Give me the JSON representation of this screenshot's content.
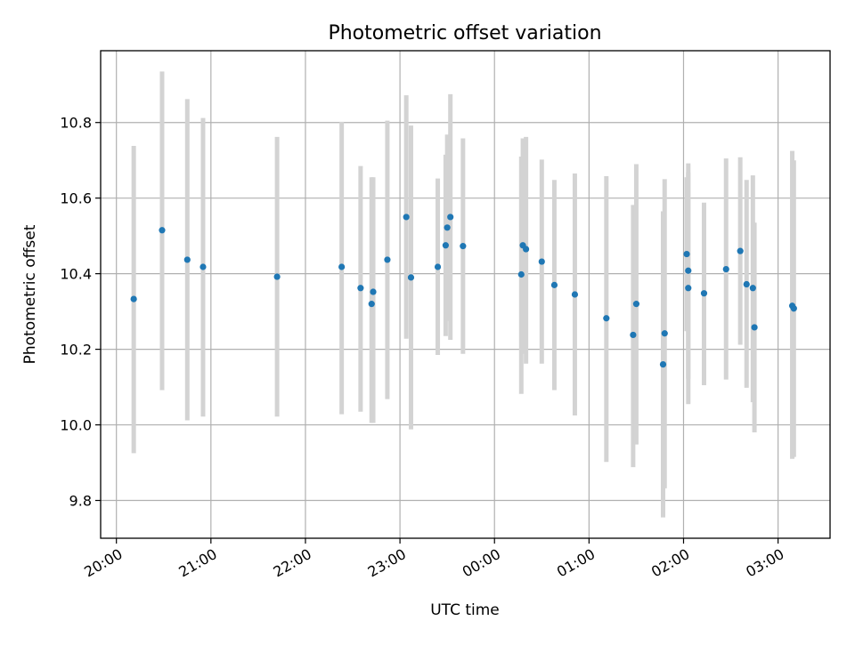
{
  "chart_data": {
    "type": "scatter",
    "title": "Photometric offset variation",
    "xlabel": "UTC time",
    "ylabel": "Photometric offset",
    "x_unit": "UTC hh:mm (times after midnight belong to next day)",
    "xlim": [
      "19:50",
      "03:33"
    ],
    "ylim": [
      9.7,
      10.99
    ],
    "xticks": [
      "20:00",
      "21:00",
      "22:00",
      "23:00",
      "00:00",
      "01:00",
      "02:00",
      "03:00"
    ],
    "yticks": [
      "9.8",
      "10.0",
      "10.2",
      "10.4",
      "10.6",
      "10.8"
    ],
    "grid": true,
    "colors": {
      "points": "#1f77b4",
      "errorbars": "#d3d3d3",
      "grid": "#b0b0b0"
    },
    "series": [
      {
        "points": [
          {
            "x": "20:11",
            "y": 10.333,
            "err_low": 9.925,
            "err_high": 10.738
          },
          {
            "x": "20:29",
            "y": 10.515,
            "err_low": 10.092,
            "err_high": 10.935
          },
          {
            "x": "20:45",
            "y": 10.437,
            "err_low": 10.012,
            "err_high": 10.862
          },
          {
            "x": "20:55",
            "y": 10.418,
            "err_low": 10.022,
            "err_high": 10.812
          },
          {
            "x": "21:42",
            "y": 10.392,
            "err_low": 10.022,
            "err_high": 10.762
          },
          {
            "x": "22:23",
            "y": 10.418,
            "err_low": 10.028,
            "err_high": 10.802
          },
          {
            "x": "22:35",
            "y": 10.362,
            "err_low": 10.035,
            "err_high": 10.685
          },
          {
            "x": "22:42",
            "y": 10.32,
            "err_low": 10.005,
            "err_high": 10.655
          },
          {
            "x": "22:43",
            "y": 10.352,
            "err_low": 10.005,
            "err_high": 10.655
          },
          {
            "x": "22:52",
            "y": 10.437,
            "err_low": 10.068,
            "err_high": 10.805
          },
          {
            "x": "23:04",
            "y": 10.55,
            "err_low": 10.228,
            "err_high": 10.872
          },
          {
            "x": "23:07",
            "y": 10.39,
            "err_low": 9.988,
            "err_high": 10.792
          },
          {
            "x": "23:24",
            "y": 10.418,
            "err_low": 10.185,
            "err_high": 10.652
          },
          {
            "x": "23:29",
            "y": 10.475,
            "err_low": 10.235,
            "err_high": 10.715
          },
          {
            "x": "23:30",
            "y": 10.522,
            "err_low": 10.275,
            "err_high": 10.768
          },
          {
            "x": "23:32",
            "y": 10.55,
            "err_low": 10.225,
            "err_high": 10.875
          },
          {
            "x": "23:40",
            "y": 10.473,
            "err_low": 10.188,
            "err_high": 10.758
          },
          {
            "x": "00:17",
            "y": 10.398,
            "err_low": 10.082,
            "err_high": 10.71
          },
          {
            "x": "00:18",
            "y": 10.475,
            "err_low": 10.188,
            "err_high": 10.758
          },
          {
            "x": "00:20",
            "y": 10.465,
            "err_low": 10.162,
            "err_high": 10.762
          },
          {
            "x": "00:30",
            "y": 10.432,
            "err_low": 10.162,
            "err_high": 10.702
          },
          {
            "x": "00:38",
            "y": 10.37,
            "err_low": 10.092,
            "err_high": 10.648
          },
          {
            "x": "00:51",
            "y": 10.345,
            "err_low": 10.025,
            "err_high": 10.665
          },
          {
            "x": "01:11",
            "y": 10.282,
            "err_low": 9.902,
            "err_high": 10.658
          },
          {
            "x": "01:28",
            "y": 10.238,
            "err_low": 9.888,
            "err_high": 10.582
          },
          {
            "x": "01:30",
            "y": 10.32,
            "err_low": 9.948,
            "err_high": 10.69
          },
          {
            "x": "01:47",
            "y": 10.16,
            "err_low": 9.755,
            "err_high": 10.565
          },
          {
            "x": "01:48",
            "y": 10.242,
            "err_low": 9.832,
            "err_high": 10.65
          },
          {
            "x": "02:02",
            "y": 10.452,
            "err_low": 10.248,
            "err_high": 10.655
          },
          {
            "x": "02:03",
            "y": 10.408,
            "err_low": 10.122,
            "err_high": 10.692
          },
          {
            "x": "02:03",
            "y": 10.362,
            "err_low": 10.055,
            "err_high": 10.668
          },
          {
            "x": "02:13",
            "y": 10.348,
            "err_low": 10.105,
            "err_high": 10.588
          },
          {
            "x": "02:27",
            "y": 10.412,
            "err_low": 10.12,
            "err_high": 10.705
          },
          {
            "x": "02:36",
            "y": 10.46,
            "err_low": 10.212,
            "err_high": 10.708
          },
          {
            "x": "02:40",
            "y": 10.372,
            "err_low": 10.098,
            "err_high": 10.648
          },
          {
            "x": "02:44",
            "y": 10.362,
            "err_low": 10.06,
            "err_high": 10.66
          },
          {
            "x": "02:45",
            "y": 10.258,
            "err_low": 9.98,
            "err_high": 10.535
          },
          {
            "x": "03:09",
            "y": 10.315,
            "err_low": 9.91,
            "err_high": 10.725
          },
          {
            "x": "03:10",
            "y": 10.308,
            "err_low": 9.915,
            "err_high": 10.7
          }
        ]
      }
    ]
  }
}
